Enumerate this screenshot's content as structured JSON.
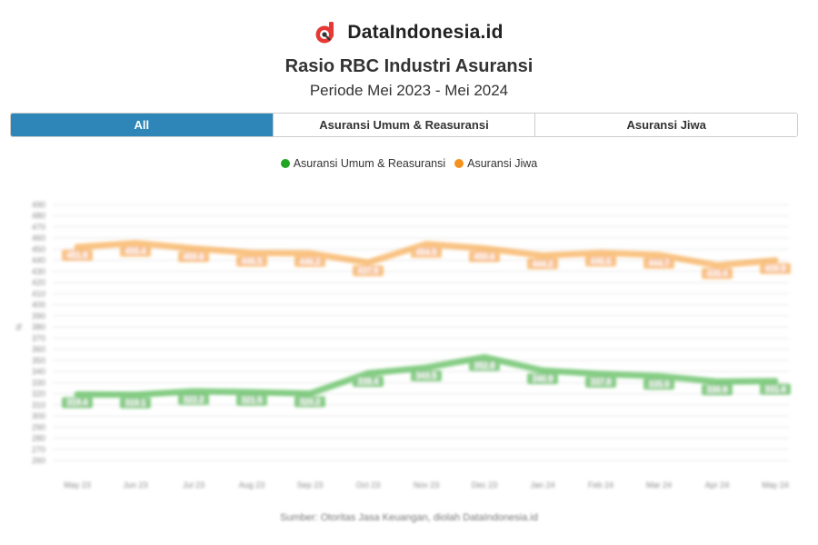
{
  "brand": {
    "name": "DataIndonesia.id",
    "accent": "#e53935"
  },
  "header": {
    "title": "Rasio RBC Industri Asuransi",
    "subtitle": "Periode Mei 2023 - Mei 2024"
  },
  "tabs": [
    {
      "label": "All",
      "active": true
    },
    {
      "label": "Asuransi Umum & Reasuransi",
      "active": false
    },
    {
      "label": "Asuransi Jiwa",
      "active": false
    }
  ],
  "legend": [
    {
      "label": "Asuransi Umum & Reasuransi",
      "color": "#22a523"
    },
    {
      "label": "Asuransi Jiwa",
      "color": "#f5921e"
    }
  ],
  "source": "Sumber: Otoritas Jasa Keuangan, diolah DataIndonesia.id",
  "chart_data": {
    "type": "line",
    "title": "Rasio RBC Industri Asuransi",
    "ylabel": "%",
    "ylim": [
      260,
      500
    ],
    "yticks": [
      260,
      270,
      280,
      290,
      300,
      310,
      320,
      330,
      340,
      350,
      360,
      370,
      380,
      390,
      400,
      410,
      420,
      430,
      440,
      450,
      460,
      470,
      480,
      490
    ],
    "grid": true,
    "categories": [
      "May 23",
      "Jun 23",
      "Jul 23",
      "Aug 23",
      "Sep 23",
      "Oct 23",
      "Nov 23",
      "Dec 23",
      "Jan 24",
      "Feb 24",
      "Mar 24",
      "Apr 24",
      "May 24"
    ],
    "series": [
      {
        "name": "Asuransi Umum & Reasuransi",
        "color": "#22a523",
        "values": [
          319.4,
          319.1,
          322.2,
          321.5,
          320.2,
          338.4,
          343.5,
          352.8,
          340.9,
          337.8,
          335.9,
          330.9,
          331.4
        ]
      },
      {
        "name": "Asuransi Jiwa",
        "color": "#f5921e",
        "values": [
          451.8,
          455.4,
          450.6,
          446.5,
          446.2,
          437.9,
          454.5,
          450.6,
          444.2,
          446.6,
          444.7,
          435.4,
          439.9
        ]
      }
    ]
  }
}
